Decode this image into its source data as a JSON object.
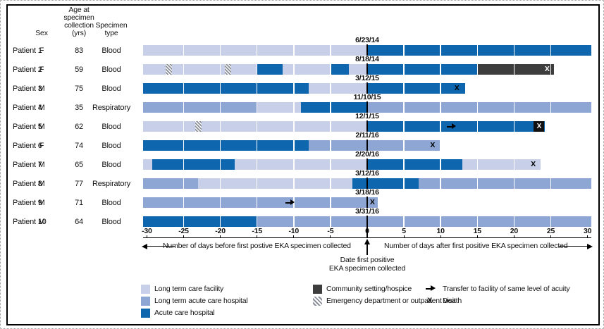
{
  "figure": {
    "table_headers": {
      "sex": "Sex",
      "age_lines": [
        "Age at",
        "specimen",
        "collection",
        "(yrs)"
      ],
      "specimen_lines": [
        "Specimen",
        "type"
      ]
    },
    "axis": {
      "ticks": [
        -30,
        -25,
        -20,
        -15,
        -10,
        -5,
        0,
        5,
        10,
        15,
        20,
        25,
        30
      ],
      "left_label": "Number of days before first postive EKA specimen collected",
      "right_label": "Number of days after first positive EKA specimen collected",
      "zero_label_lines": [
        "Date first positive",
        "EKA specimen collected"
      ]
    },
    "legend": {
      "ltcf": "Long term care facility",
      "ltach": "Long term acute care hospital",
      "acute": "Acute care hospital",
      "community": "Community setting/hospice",
      "ed": "Emergency department or outpatient visit",
      "transfer": "Transfer to facility of same level of acuity",
      "death_symbol": "X",
      "death": "Death"
    }
  },
  "colors": {
    "ltcf": "#c7d0e8",
    "ltach": "#8ea6d3",
    "acute": "#0e67ae",
    "community": "#3d3d3d",
    "axis": "#000000"
  },
  "chart_data": {
    "type": "timeline",
    "unit": "days relative to first positive EKA specimen collection",
    "x_range": [
      -30,
      30
    ],
    "tick_step": 5,
    "segment_types": {
      "ltcf": "Long term care facility",
      "ltach": "Long term acute care hospital",
      "acute": "Acute care hospital",
      "community": "Community setting/hospice"
    },
    "patients": [
      {
        "label": "Patient 1",
        "sex": "F",
        "age": "83",
        "specimen": "Blood",
        "date": "6/23/14",
        "segments": [
          {
            "type": "ltcf",
            "start": -30.5,
            "end": 0
          },
          {
            "type": "acute",
            "start": 0,
            "end": 30.5
          }
        ],
        "markers": []
      },
      {
        "label": "Patient 2",
        "sex": "F",
        "age": "59",
        "specimen": "Blood",
        "date": "8/18/14",
        "segments": [
          {
            "type": "ltcf",
            "start": -30.5,
            "end": -15
          },
          {
            "type": "acute",
            "start": -15,
            "end": -11.5
          },
          {
            "type": "ltcf",
            "start": -11.5,
            "end": -5
          },
          {
            "type": "acute",
            "start": -5,
            "end": -2.5
          },
          {
            "type": "ltcf",
            "start": -2.5,
            "end": 0
          },
          {
            "type": "acute",
            "start": 0,
            "end": 15
          },
          {
            "type": "community",
            "start": 15,
            "end": 25.4
          }
        ],
        "markers": [
          {
            "type": "ed_visit",
            "day": -27
          },
          {
            "type": "ed_visit",
            "day": -19
          },
          {
            "type": "death",
            "day": 24.5,
            "style": "white"
          }
        ]
      },
      {
        "label": "Patient 3",
        "sex": "M",
        "age": "75",
        "specimen": "Blood",
        "date": "3/12/15",
        "segments": [
          {
            "type": "acute",
            "start": -30.5,
            "end": -8
          },
          {
            "type": "ltcf",
            "start": -8,
            "end": 0
          },
          {
            "type": "acute",
            "start": 0,
            "end": 13.3
          }
        ],
        "markers": [
          {
            "type": "death",
            "day": 12.2,
            "style": "black"
          }
        ]
      },
      {
        "label": "Patient 4",
        "sex": "M",
        "age": "35",
        "specimen": "Respiratory",
        "date": "11/10/15",
        "segments": [
          {
            "type": "ltach",
            "start": -30.5,
            "end": -15
          },
          {
            "type": "ltcf",
            "start": -15,
            "end": -9
          },
          {
            "type": "acute",
            "start": -9,
            "end": 0
          },
          {
            "type": "ltach",
            "start": 0,
            "end": 30.5
          }
        ],
        "markers": []
      },
      {
        "label": "Patient 5",
        "sex": "M",
        "age": "62",
        "specimen": "Blood",
        "date": "12/1/15",
        "segments": [
          {
            "type": "ltcf",
            "start": -30.5,
            "end": 0
          },
          {
            "type": "acute",
            "start": 0,
            "end": 24.2
          }
        ],
        "markers": [
          {
            "type": "ed_visit",
            "day": -23
          },
          {
            "type": "transfer",
            "day": 11.5
          },
          {
            "type": "death",
            "day": 23.4,
            "style": "boxed"
          }
        ]
      },
      {
        "label": "Patient 6",
        "sex": "F",
        "age": "74",
        "specimen": "Blood",
        "date": "2/11/16",
        "segments": [
          {
            "type": "acute",
            "start": -30.5,
            "end": -8
          },
          {
            "type": "ltach",
            "start": -8,
            "end": 10
          }
        ],
        "markers": [
          {
            "type": "death",
            "day": 8.9,
            "style": "black"
          }
        ]
      },
      {
        "label": "Patient 7",
        "sex": "M",
        "age": "65",
        "specimen": "Blood",
        "date": "2/20/16",
        "segments": [
          {
            "type": "ltcf",
            "start": -30.5,
            "end": -29.3
          },
          {
            "type": "acute",
            "start": -29.3,
            "end": -18
          },
          {
            "type": "ltcf",
            "start": -18,
            "end": 0
          },
          {
            "type": "acute",
            "start": 0,
            "end": 13
          },
          {
            "type": "ltcf",
            "start": 13,
            "end": 23.6
          }
        ],
        "markers": [
          {
            "type": "death",
            "day": 22.6,
            "style": "black"
          }
        ]
      },
      {
        "label": "Patient 8",
        "sex": "M",
        "age": "77",
        "specimen": "Respiratory",
        "date": "3/12/16",
        "segments": [
          {
            "type": "ltach",
            "start": -30.5,
            "end": -23
          },
          {
            "type": "ltcf",
            "start": -23,
            "end": -2
          },
          {
            "type": "acute",
            "start": -2,
            "end": 7
          },
          {
            "type": "ltach",
            "start": 7,
            "end": 30.5
          }
        ],
        "markers": []
      },
      {
        "label": "Patient 9",
        "sex": "M",
        "age": "71",
        "specimen": "Blood",
        "date": "3/18/16",
        "segments": [
          {
            "type": "ltach",
            "start": -30.5,
            "end": 1.4
          }
        ],
        "markers": [
          {
            "type": "transfer",
            "day": -10.5
          },
          {
            "type": "death",
            "day": 0.7,
            "style": "black"
          }
        ]
      },
      {
        "label": "Patient 10",
        "sex": "M",
        "age": "64",
        "specimen": "Blood",
        "date": "3/31/16",
        "segments": [
          {
            "type": "acute",
            "start": -30.5,
            "end": -15
          },
          {
            "type": "ltach",
            "start": -15,
            "end": 30.5
          }
        ],
        "markers": []
      }
    ]
  }
}
